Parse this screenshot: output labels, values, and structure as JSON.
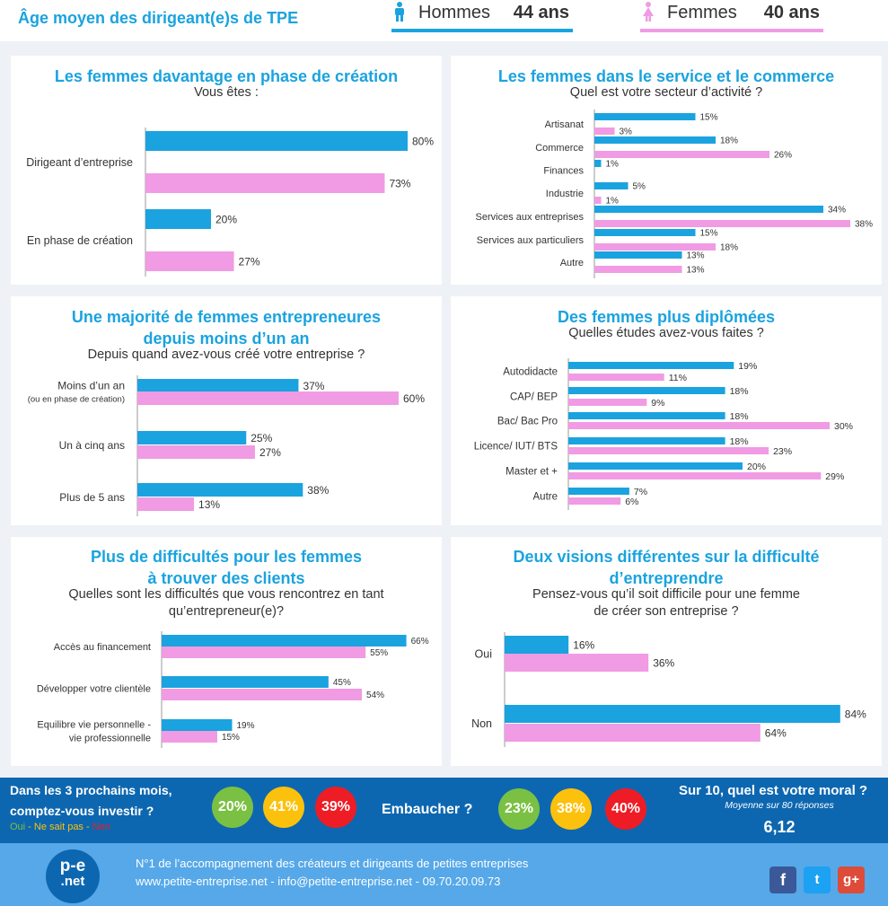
{
  "header": {
    "title": "Âge moyen des dirigeant(e)s de TPE",
    "men_label": "Hommes",
    "men_value": "44 ans",
    "women_label": "Femmes",
    "women_value": "40 ans"
  },
  "colors": {
    "men": "#1aa3df",
    "women": "#f09be3",
    "title": "#1aa3df"
  },
  "panels": {
    "p1": {
      "title": [
        "Les femmes davantage en phase de création"
      ],
      "subtitle": [
        "Vous êtes :"
      ]
    },
    "p2": {
      "title": [
        "Les femmes dans le service et le commerce"
      ],
      "subtitle": [
        "Quel est votre secteur d’activité ?"
      ]
    },
    "p3": {
      "title": [
        "Une majorité de femmes entrepreneures",
        "depuis moins d’un an"
      ],
      "subtitle": [
        "Depuis quand avez-vous créé votre entreprise ?"
      ]
    },
    "p4": {
      "title": [
        "Des femmes plus diplômées"
      ],
      "subtitle": [
        "Quelles études avez-vous faites ?"
      ]
    },
    "p5": {
      "title": [
        "Plus de difficultés pour les femmes",
        "à trouver des clients"
      ],
      "subtitle": [
        "Quelles sont les difficultés que vous rencontrez en tant",
        "qu’entrepreneur(e)?"
      ]
    },
    "p6": {
      "title": [
        "Deux visions différentes sur la difficulté",
        "d’entreprendre"
      ],
      "subtitle": [
        "Pensez-vous qu’il soit difficile pour une femme",
        "de créer son entreprise ?"
      ]
    }
  },
  "chart_data": [
    {
      "id": "p1",
      "type": "bar",
      "title": "Les femmes davantage en phase de création",
      "subtitle": "Vous êtes :",
      "categories": [
        [
          "Dirigeant d’entreprise"
        ],
        [
          "En phase de création"
        ]
      ],
      "series": [
        {
          "name": "Hommes",
          "values": [
            80,
            20
          ]
        },
        {
          "name": "Femmes",
          "values": [
            73,
            27
          ]
        }
      ],
      "unit": "%",
      "xlim": [
        0,
        80
      ]
    },
    {
      "id": "p2",
      "type": "bar",
      "title": "Les femmes dans le service et le commerce",
      "subtitle": "Quel est votre secteur d’activité ?",
      "categories": [
        [
          "Artisanat"
        ],
        [
          "Commerce"
        ],
        [
          "Finances"
        ],
        [
          "Industrie"
        ],
        [
          "Services  aux entreprises"
        ],
        [
          "Services aux particuliers"
        ],
        [
          "Autre"
        ]
      ],
      "series": [
        {
          "name": "Hommes",
          "values": [
            15,
            18,
            1,
            5,
            34,
            15,
            13
          ]
        },
        {
          "name": "Femmes",
          "values": [
            3,
            26,
            0,
            1,
            38,
            18,
            13
          ]
        }
      ],
      "unit": "%",
      "xlim": [
        0,
        38
      ]
    },
    {
      "id": "p3",
      "type": "bar",
      "title": "Une majorité de femmes entrepreneures depuis moins d’un an",
      "subtitle": "Depuis quand avez-vous créé votre entreprise ?",
      "categories": [
        [
          "Moins d’un an",
          "(ou en phase de création)"
        ],
        [
          "Un à cinq ans"
        ],
        [
          "Plus de 5 ans"
        ]
      ],
      "series": [
        {
          "name": "Hommes",
          "values": [
            37,
            25,
            38
          ]
        },
        {
          "name": "Femmes",
          "values": [
            60,
            27,
            13
          ]
        }
      ],
      "unit": "%",
      "xlim": [
        0,
        60
      ]
    },
    {
      "id": "p4",
      "type": "bar",
      "title": "Des femmes plus diplômées",
      "subtitle": "Quelles études avez-vous faites ?",
      "categories": [
        [
          "Autodidacte"
        ],
        [
          "CAP/ BEP"
        ],
        [
          "Bac/ Bac Pro"
        ],
        [
          "Licence/ IUT/ BTS"
        ],
        [
          "Master et +"
        ],
        [
          "Autre"
        ]
      ],
      "series": [
        {
          "name": "Hommes",
          "values": [
            19,
            18,
            18,
            18,
            20,
            7
          ]
        },
        {
          "name": "Femmes",
          "values": [
            11,
            9,
            30,
            23,
            29,
            6
          ]
        }
      ],
      "unit": "%",
      "xlim": [
        0,
        30
      ]
    },
    {
      "id": "p5",
      "type": "bar",
      "title": "Plus de difficultés pour les femmes à trouver des clients",
      "subtitle": "Quelles sont les difficultés que vous rencontrez en tant qu’entrepreneur(e)?",
      "categories": [
        [
          "Accès au financement"
        ],
        [
          "Développer votre clientèle"
        ],
        [
          "Equilibre vie personnelle -",
          "vie professionnelle"
        ]
      ],
      "series": [
        {
          "name": "Hommes",
          "values": [
            66,
            45,
            19
          ]
        },
        {
          "name": "Femmes",
          "values": [
            55,
            54,
            15
          ]
        }
      ],
      "unit": "%",
      "xlim": [
        0,
        66
      ]
    },
    {
      "id": "p6",
      "type": "bar",
      "title": "Deux visions différentes sur la difficulté d’entreprendre",
      "subtitle": "Pensez-vous qu’il soit difficile pour une femme de créer son entreprise ?",
      "categories": [
        [
          "Oui"
        ],
        [
          "Non"
        ]
      ],
      "series": [
        {
          "name": "Hommes",
          "values": [
            16,
            84
          ]
        },
        {
          "name": "Femmes",
          "values": [
            36,
            64
          ]
        }
      ],
      "unit": "%",
      "xlim": [
        0,
        84
      ]
    }
  ],
  "footer": {
    "invest_line1": "Dans les 3 prochains mois,",
    "invest_line2": "comptez-vous investir ?",
    "legend_oui": "Oui",
    "legend_nsp": "Ne sait pas",
    "legend_non": "Non",
    "invest": [
      "20%",
      "41%",
      "39%"
    ],
    "hire_label": "Embaucher ?",
    "hire": [
      "23%",
      "38%",
      "40%"
    ],
    "moral_title": "Sur 10, quel est votre moral ?",
    "moral_sub": "Moyenne sur 80 réponses",
    "moral_value": "6,12",
    "circle_colors": [
      "#7ac143",
      "#fcc10c",
      "#ee1c25"
    ],
    "brand_line1": "N°1 de l’accompagnement des créateurs et dirigeants de petites entreprises",
    "brand_line2": "www.petite-entreprise.net - info@petite-entreprise.net - 09.70.20.09.73",
    "logo_top": "p-e",
    "logo_bottom": ".net",
    "social": [
      "f",
      "t",
      "g+"
    ]
  }
}
